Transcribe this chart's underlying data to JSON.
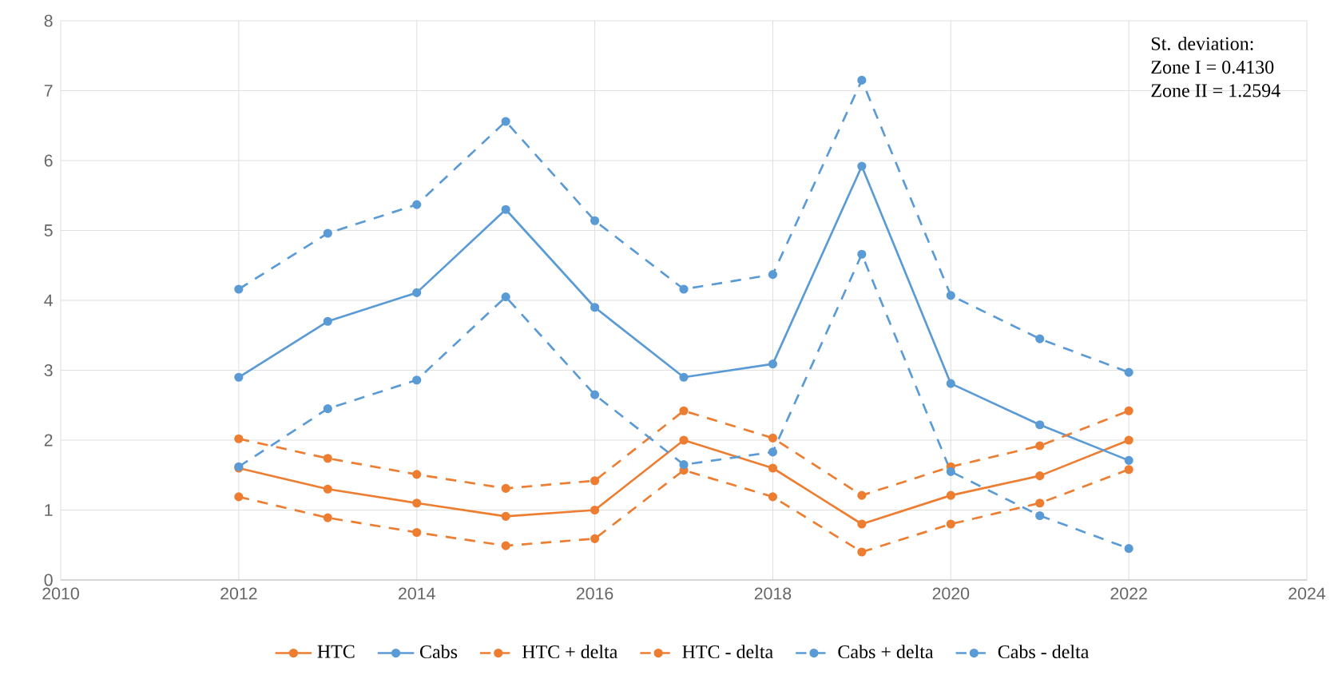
{
  "chart_data": {
    "type": "line",
    "x": [
      2012,
      2013,
      2014,
      2015,
      2016,
      2017,
      2018,
      2019,
      2020,
      2021,
      2022
    ],
    "series": [
      {
        "name": "HTC",
        "color": "#ed7d31",
        "line_style": "solid",
        "values": [
          1.6,
          1.3,
          1.1,
          0.91,
          1.0,
          2.0,
          1.6,
          0.8,
          1.21,
          1.49,
          2.0
        ]
      },
      {
        "name": "Cabs",
        "color": "#5b9bd5",
        "line_style": "solid",
        "values": [
          2.9,
          3.7,
          4.11,
          5.3,
          3.9,
          2.9,
          3.09,
          5.92,
          2.81,
          2.22,
          1.71
        ]
      },
      {
        "name": "HTC + delta",
        "color": "#ed7d31",
        "line_style": "dashed",
        "values": [
          2.02,
          1.74,
          1.51,
          1.31,
          1.42,
          2.42,
          2.03,
          1.21,
          1.62,
          1.92,
          2.42
        ]
      },
      {
        "name": "HTC - delta",
        "color": "#ed7d31",
        "line_style": "dashed",
        "values": [
          1.19,
          0.89,
          0.68,
          0.49,
          0.59,
          1.57,
          1.19,
          0.4,
          0.8,
          1.1,
          1.58
        ]
      },
      {
        "name": "Cabs + delta",
        "color": "#5b9bd5",
        "line_style": "dashed",
        "values": [
          4.16,
          4.96,
          5.37,
          6.56,
          5.14,
          4.16,
          4.37,
          7.15,
          4.07,
          3.45,
          2.97
        ]
      },
      {
        "name": "Cabs - delta",
        "color": "#5b9bd5",
        "line_style": "dashed",
        "values": [
          1.62,
          2.45,
          2.86,
          4.05,
          2.65,
          1.65,
          1.83,
          4.66,
          1.55,
          0.92,
          0.45
        ]
      }
    ],
    "xlim": [
      2010,
      2024
    ],
    "xticks": [
      2010,
      2012,
      2014,
      2016,
      2018,
      2020,
      2022,
      2024
    ],
    "ylim": [
      0,
      8
    ],
    "yticks": [
      0,
      1,
      2,
      3,
      4,
      5,
      6,
      7,
      8
    ],
    "grid": true,
    "legend": "bottom",
    "marker": "circle",
    "annotations": [
      "St. deviation:",
      "Zone I = 0.4130",
      "Zone II = 1.2594"
    ]
  }
}
